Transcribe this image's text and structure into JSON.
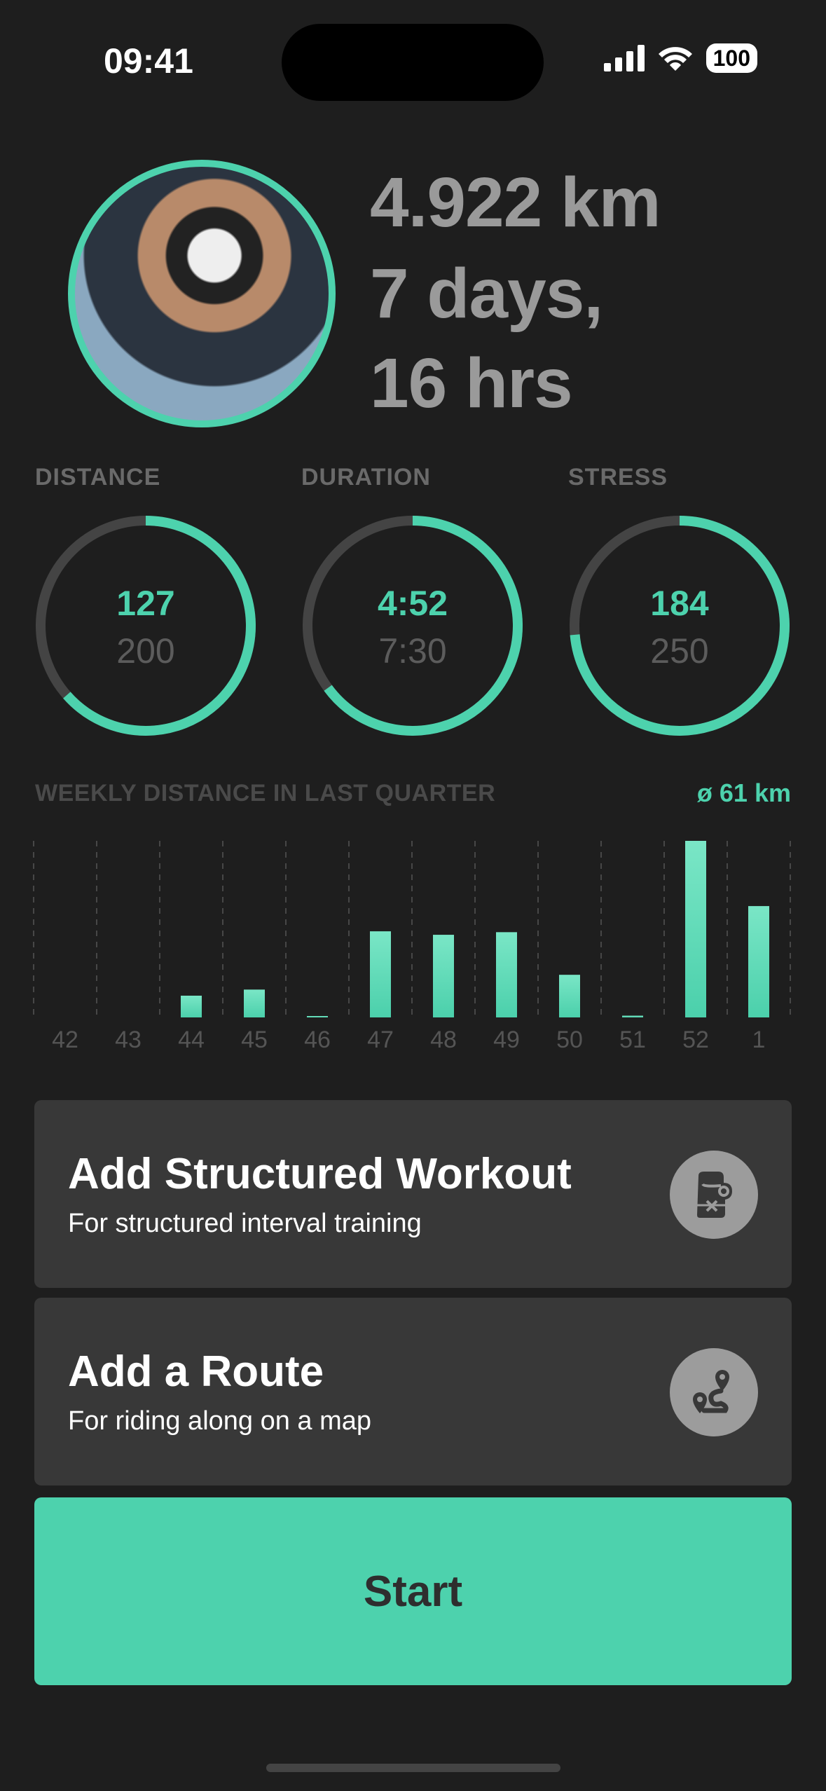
{
  "status_bar": {
    "time": "09:41",
    "battery": "100",
    "icons": [
      "signal-icon",
      "wifi-icon",
      "battery-icon"
    ]
  },
  "profile": {
    "avatar": "cyclist-photo",
    "total_distance": "4.922 km",
    "total_time_line1": "7 days,",
    "total_time_line2": "16 hrs"
  },
  "metrics": [
    {
      "label": "DISTANCE",
      "value": "127",
      "goal": "200",
      "progress": 0.635
    },
    {
      "label": "DURATION",
      "value": "4:52",
      "goal": "7:30",
      "progress": 0.649
    },
    {
      "label": "STRESS",
      "value": "184",
      "goal": "250",
      "progress": 0.736
    }
  ],
  "colors": {
    "accent": "#4dd2ad",
    "background": "#1e1e1e",
    "card": "#383838",
    "track": "#444444"
  },
  "chart_data": {
    "type": "bar",
    "title": "WEEKLY DISTANCE IN LAST QUARTER",
    "annotation": "ø 61 km",
    "categories": [
      "42",
      "43",
      "44",
      "45",
      "46",
      "47",
      "48",
      "49",
      "50",
      "51",
      "52",
      "1"
    ],
    "values": [
      0,
      0,
      25,
      32,
      1,
      99,
      95,
      98,
      49,
      2,
      203,
      128
    ],
    "ylim": [
      0,
      203
    ],
    "grid": "vertical dashed",
    "xlabel": "",
    "ylabel": ""
  },
  "actions": [
    {
      "title": "Add Structured Workout",
      "subtitle": "For structured interval training",
      "icon": "boxing-glove-icon"
    },
    {
      "title": "Add a Route",
      "subtitle": "For riding along on a map",
      "icon": "route-icon"
    }
  ],
  "start_label": "Start"
}
